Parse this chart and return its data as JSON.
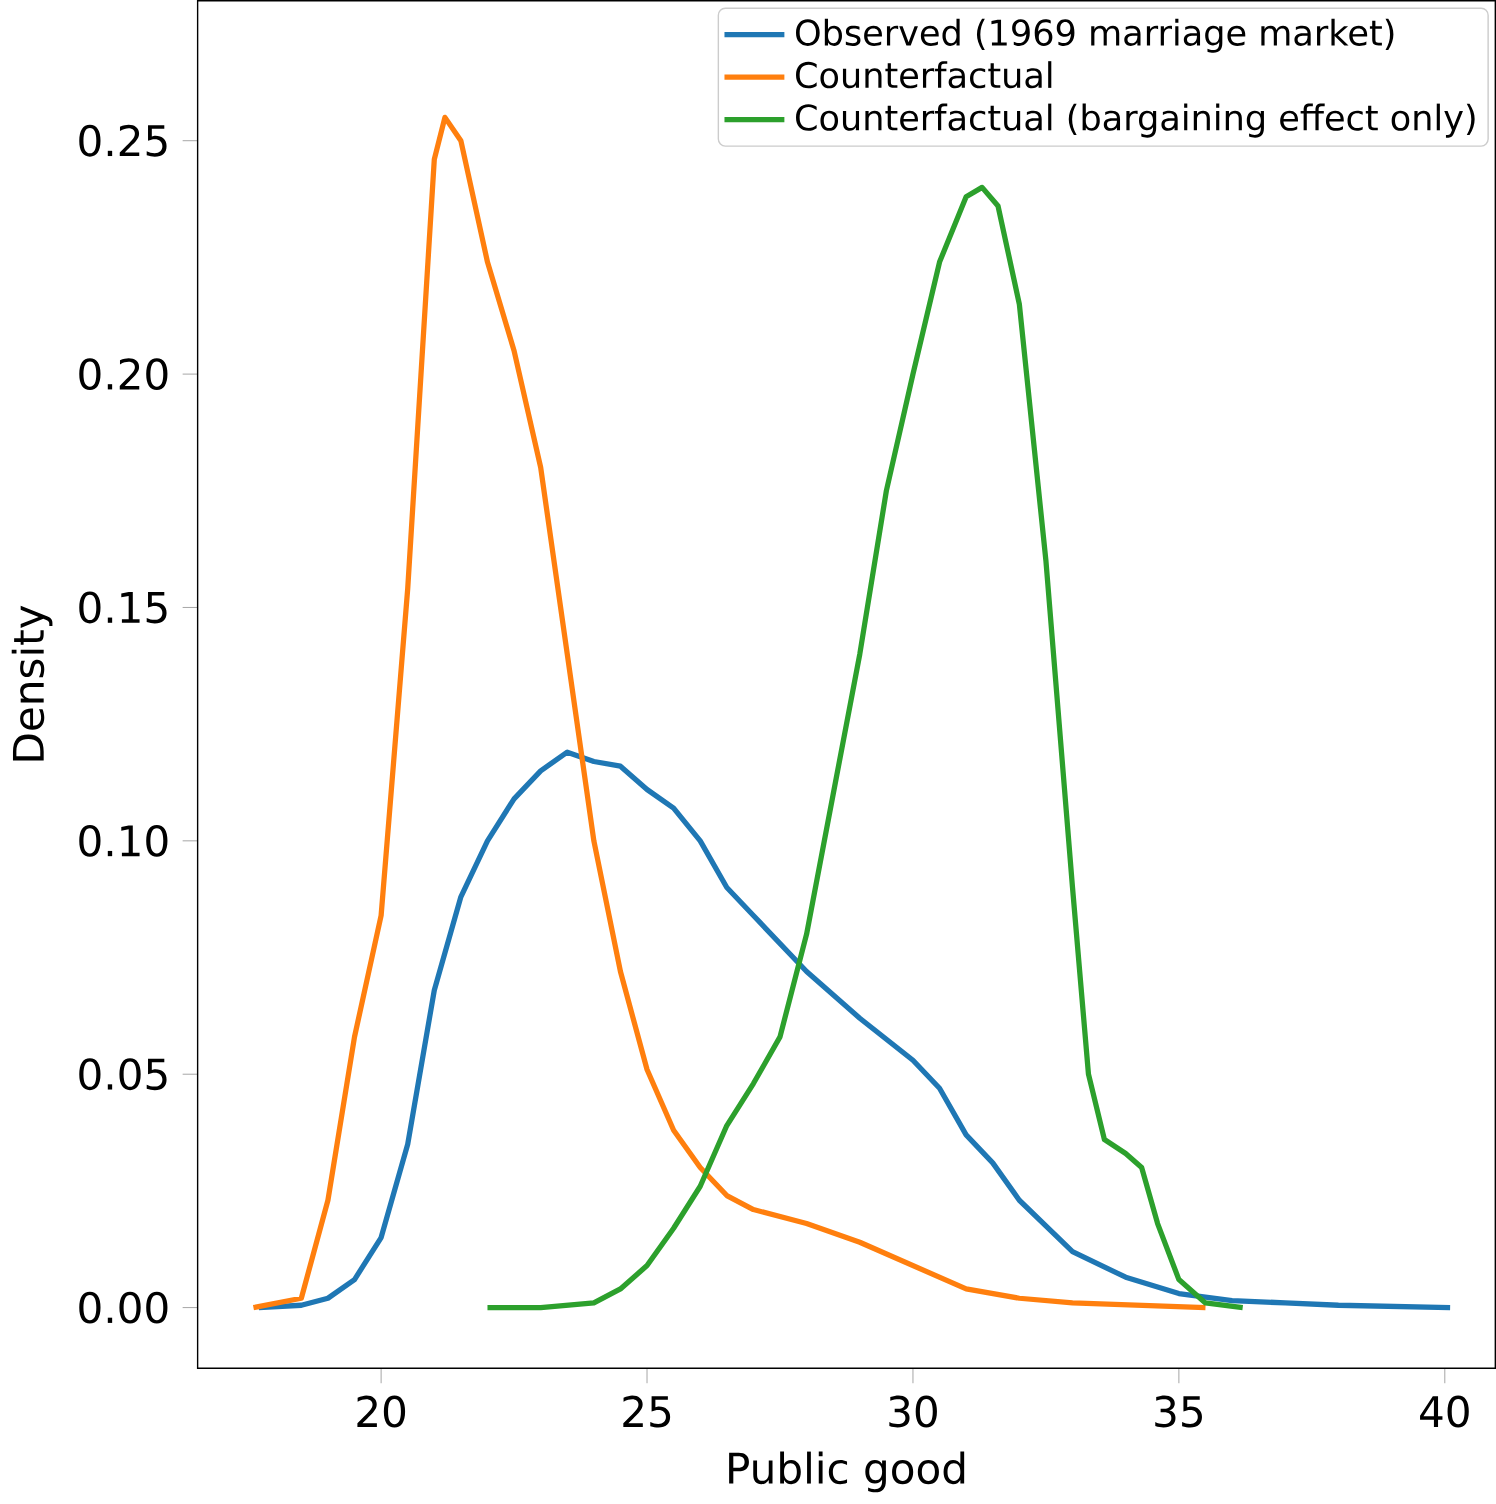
{
  "chart_data": {
    "type": "line",
    "xlabel": "Public good",
    "ylabel": "Density",
    "xlim": [
      16.55,
      40.95
    ],
    "ylim": [
      -0.013,
      0.28
    ],
    "xticks": [
      20,
      25,
      30,
      35,
      40
    ],
    "yticks": [
      {
        "value": 0,
        "label": "0.00"
      },
      {
        "value": 0.05,
        "label": "0.05"
      },
      {
        "value": 0.1,
        "label": "0.10"
      },
      {
        "value": 0.15,
        "label": "0.15"
      },
      {
        "value": 0.2,
        "label": "0.20"
      },
      {
        "value": 0.25,
        "label": "0.25"
      }
    ],
    "grid": false,
    "legend": "top right",
    "marker": "none",
    "line_style": "solid",
    "series": [
      {
        "name": "Observed (1969 marriage market)",
        "color": "#1f77b4",
        "x": [
          17.7,
          18.5,
          19,
          19.5,
          20,
          20.5,
          21,
          21.5,
          22,
          22.5,
          23,
          23.5,
          24,
          24.5,
          25,
          25.5,
          26,
          26.5,
          27,
          28,
          29,
          30,
          30.5,
          31,
          31.5,
          32,
          33,
          34,
          35,
          36,
          37,
          38,
          40.1
        ],
        "values": [
          0,
          0.0005,
          0.002,
          0.006,
          0.015,
          0.035,
          0.068,
          0.088,
          0.1,
          0.109,
          0.115,
          0.119,
          0.117,
          0.116,
          0.111,
          0.107,
          0.1,
          0.09,
          0.084,
          0.072,
          0.062,
          0.053,
          0.047,
          0.037,
          0.031,
          0.023,
          0.012,
          0.0065,
          0.003,
          0.0015,
          0.001,
          0.0005,
          0
        ]
      },
      {
        "name": "Counterfactual",
        "color": "#ff7f0e",
        "x": [
          17.6,
          18.5,
          19,
          19.5,
          20,
          20.5,
          21,
          21.2,
          21.5,
          22,
          22.5,
          23,
          23.5,
          24,
          24.5,
          25,
          25.5,
          26,
          26.5,
          27,
          28,
          29,
          30,
          31,
          32,
          33,
          35.5
        ],
        "values": [
          0,
          0.002,
          0.023,
          0.058,
          0.084,
          0.154,
          0.246,
          0.255,
          0.25,
          0.224,
          0.205,
          0.18,
          0.14,
          0.1,
          0.072,
          0.051,
          0.038,
          0.03,
          0.024,
          0.021,
          0.018,
          0.014,
          0.009,
          0.004,
          0.002,
          0.001,
          0
        ]
      },
      {
        "name": "Counterfactual (bargaining effect only)",
        "color": "#2ca02c",
        "x": [
          22,
          23,
          24,
          24.5,
          25,
          25.5,
          26,
          26.5,
          27,
          27.5,
          28,
          28.5,
          29,
          29.5,
          30,
          30.5,
          31,
          31.3,
          31.6,
          32,
          32.5,
          33,
          33.3,
          33.6,
          34,
          34.3,
          34.6,
          35,
          35.5,
          36.2
        ],
        "values": [
          0,
          0,
          0.001,
          0.004,
          0.009,
          0.017,
          0.026,
          0.039,
          0.048,
          0.058,
          0.08,
          0.11,
          0.14,
          0.175,
          0.2,
          0.224,
          0.238,
          0.24,
          0.236,
          0.215,
          0.16,
          0.09,
          0.05,
          0.036,
          0.033,
          0.03,
          0.018,
          0.006,
          0.001,
          0
        ]
      }
    ]
  }
}
